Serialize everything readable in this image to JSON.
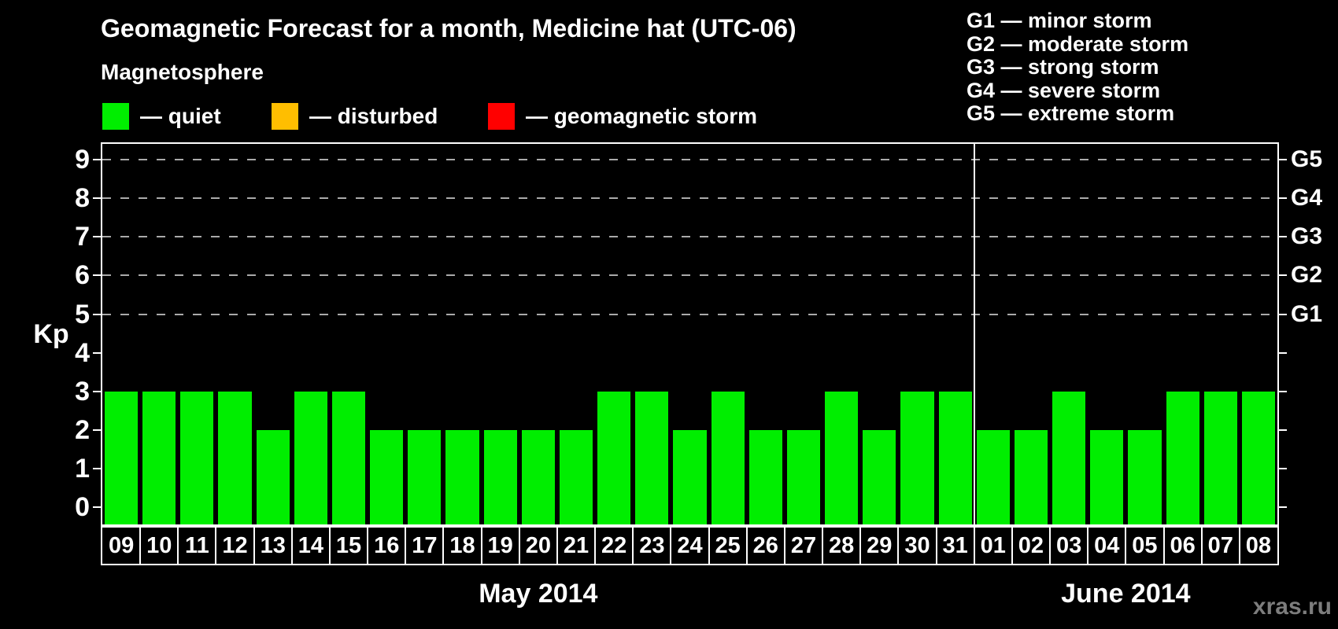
{
  "header": {
    "title": "Geomagnetic Forecast for a month, Medicine hat (UTC-06)",
    "subtitle": "Magnetosphere"
  },
  "legend": {
    "items": [
      {
        "label": "— quiet",
        "color": "#00ee00"
      },
      {
        "label": "— disturbed",
        "color": "#ffbe00"
      },
      {
        "label": "— geomagnetic storm",
        "color": "#ff0000"
      }
    ]
  },
  "storm_scale": {
    "items": [
      "G1 — minor storm",
      "G2 — moderate storm",
      "G3 — strong storm",
      "G4 — severe storm",
      "G5 — extreme storm"
    ]
  },
  "chart_data": {
    "type": "bar",
    "title": "Geomagnetic Forecast for a month, Medicine hat (UTC-06)",
    "ylabel": "Kp",
    "ylim": [
      0,
      9
    ],
    "yticks": [
      0,
      1,
      2,
      3,
      4,
      5,
      6,
      7,
      8,
      9
    ],
    "grid": "dashed-horizontal-at-storm-levels",
    "grid_levels": [
      5,
      6,
      7,
      8,
      9
    ],
    "right_axis": [
      {
        "label": "G1",
        "kp": 5
      },
      {
        "label": "G2",
        "kp": 6
      },
      {
        "label": "G3",
        "kp": 7
      },
      {
        "label": "G4",
        "kp": 8
      },
      {
        "label": "G5",
        "kp": 9
      }
    ],
    "bar_color": "#00ee00",
    "bar_meaning": "quiet",
    "months": [
      {
        "label": "May 2014",
        "days": [
          "09",
          "10",
          "11",
          "12",
          "13",
          "14",
          "15",
          "16",
          "17",
          "18",
          "19",
          "20",
          "21",
          "22",
          "23",
          "24",
          "25",
          "26",
          "27",
          "28",
          "29",
          "30",
          "31"
        ],
        "values": [
          3,
          3,
          3,
          3,
          2,
          3,
          3,
          2,
          2,
          2,
          2,
          2,
          2,
          3,
          3,
          2,
          3,
          2,
          2,
          3,
          2,
          3,
          3
        ]
      },
      {
        "label": "June 2014",
        "days": [
          "01",
          "02",
          "03",
          "04",
          "05",
          "06",
          "07",
          "08"
        ],
        "values": [
          2,
          2,
          3,
          2,
          2,
          3,
          3,
          3
        ]
      }
    ]
  },
  "footer": {
    "watermark": "xras.ru"
  }
}
